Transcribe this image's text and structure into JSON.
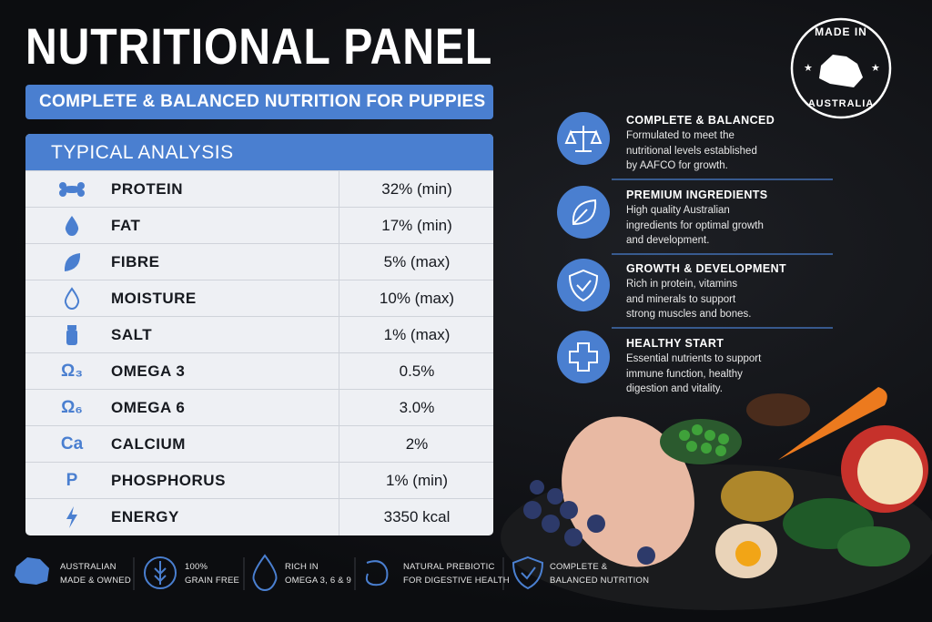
{
  "header": {
    "title": "NUTRITIONAL PANEL",
    "subtitle": "COMPLETE & BALANCED NUTRITION FOR PUPPIES"
  },
  "badge": {
    "top": "MADE IN",
    "bottom": "AUSTRALIA"
  },
  "table": {
    "title": "TYPICAL ANALYSIS",
    "rows": [
      [
        "PROTEIN",
        "32% (min)"
      ],
      [
        "FAT",
        "17% (min)"
      ],
      [
        "FIBRE",
        "5% (max)"
      ],
      [
        "MOISTURE",
        "10% (max)"
      ],
      [
        "SALT",
        "1% (max)"
      ],
      [
        "OMEGA 3",
        "0.5%"
      ],
      [
        "OMEGA 6",
        "3.0%"
      ],
      [
        "CALCIUM",
        "2%"
      ],
      [
        "PHOSPHORUS",
        "1% (min)"
      ],
      [
        "ENERGY",
        "3350 kcal"
      ]
    ],
    "text_icons": {
      "5": "Ω₃",
      "6": "Ω₆",
      "7": "Ca",
      "8": "P"
    }
  },
  "features": [
    {
      "title": "COMPLETE & BALANCED",
      "lines": [
        "Formulated to meet the",
        "nutritional levels established",
        "by AAFCO for growth."
      ]
    },
    {
      "title": "PREMIUM INGREDIENTS",
      "lines": [
        "High quality Australian",
        "ingredients for optimal growth",
        "and development."
      ]
    },
    {
      "title": "GROWTH & DEVELOPMENT",
      "lines": [
        "Rich in protein, vitamins",
        "and minerals to support",
        "strong muscles and bones."
      ]
    },
    {
      "title": "HEALTHY START",
      "lines": [
        "Essential nutrients to support",
        "immune function, healthy",
        "digestion and vitality."
      ]
    }
  ],
  "footer": [
    {
      "lines": [
        "AUSTRALIAN",
        "MADE & OWNED"
      ]
    },
    {
      "lines": [
        "100%",
        "GRAIN FREE"
      ]
    },
    {
      "lines": [
        "RICH IN",
        "OMEGA 3, 6 & 9"
      ]
    },
    {
      "lines": [
        "NATURAL PREBIOTIC",
        "FOR DIGESTIVE HEALTH"
      ]
    },
    {
      "lines": [
        "COMPLETE &",
        "BALANCED NUTRITION"
      ]
    }
  ]
}
